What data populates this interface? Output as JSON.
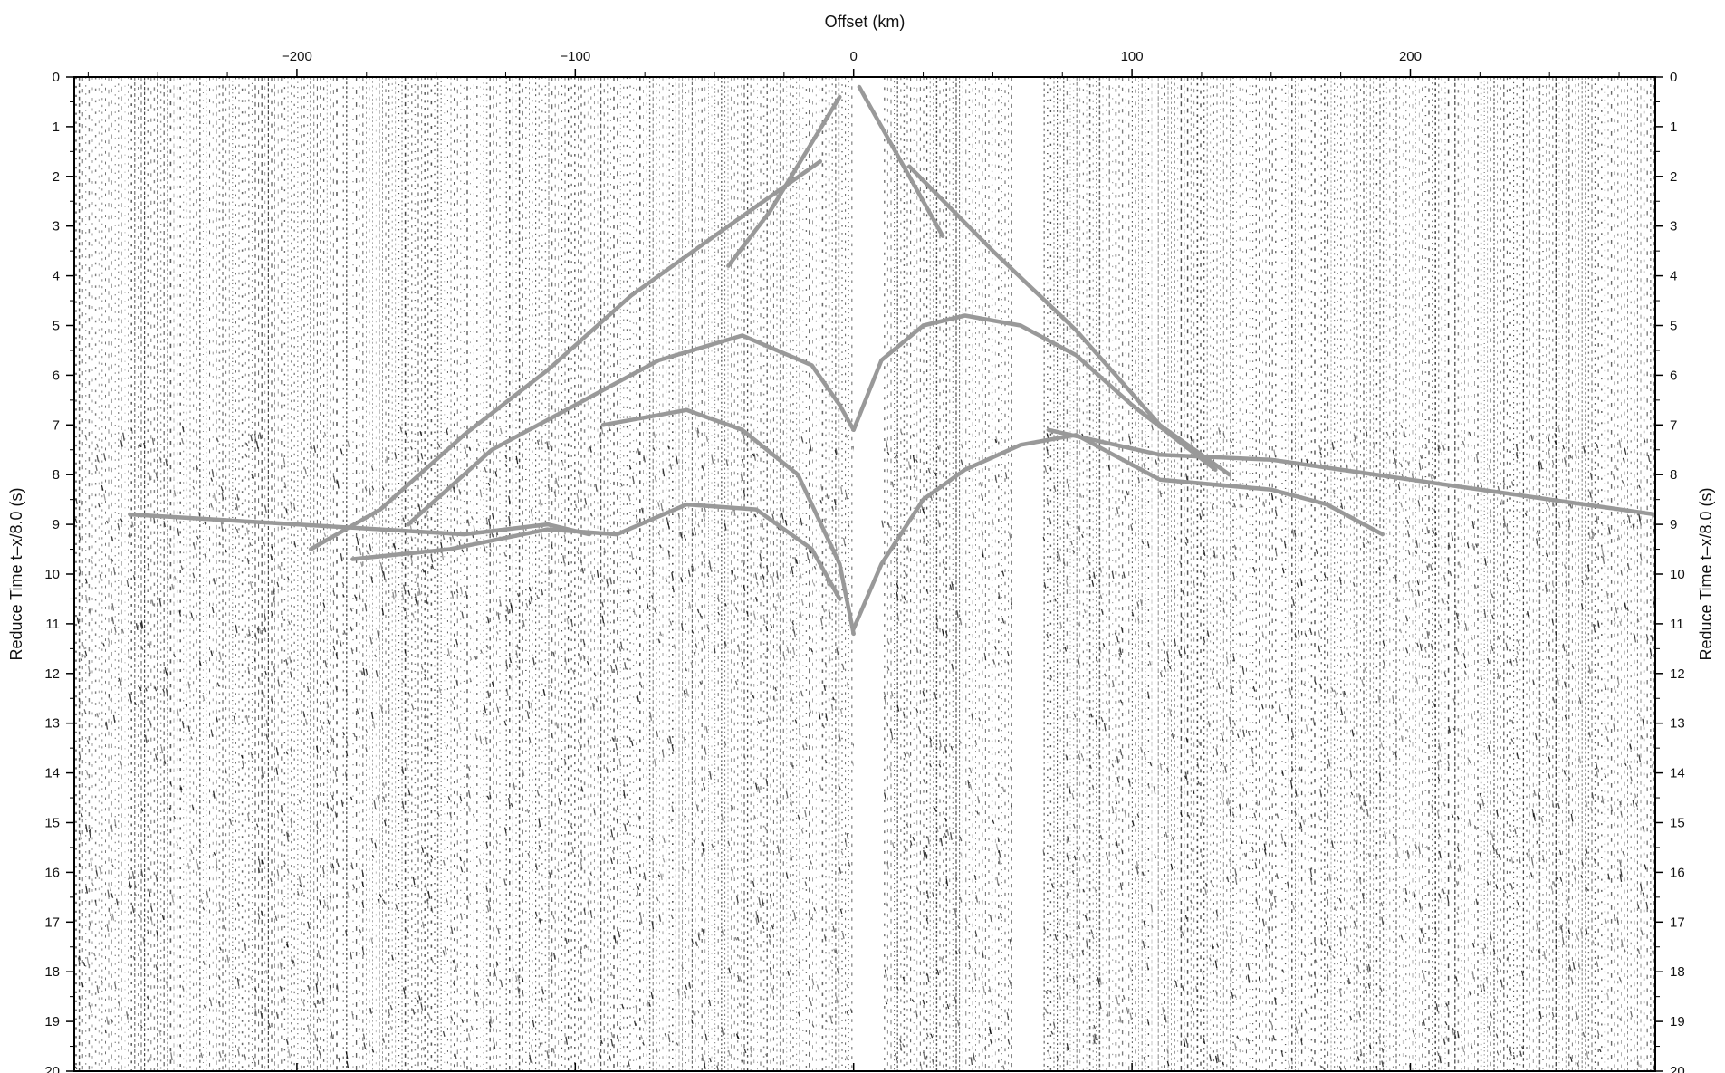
{
  "chart_data": {
    "type": "line",
    "title": "",
    "xlabel": "Offset (km)",
    "ylabel": "Reduce Time t–x/8.0 (s)",
    "ylabel_right": "Reduce Time t–x/8.0 (s)",
    "xlim": [
      -280,
      288
    ],
    "ylim": [
      0,
      20
    ],
    "y_inverted": true,
    "x_axis_position": "top",
    "x_ticks": [
      -200,
      -100,
      0,
      100,
      200
    ],
    "x_tick_labels": [
      "−200",
      "−100",
      "0",
      "100",
      "200"
    ],
    "y_ticks": [
      0,
      1,
      2,
      3,
      4,
      5,
      6,
      7,
      8,
      9,
      10,
      11,
      12,
      13,
      14,
      15,
      16,
      17,
      18,
      19,
      20
    ],
    "y_tick_labels": [
      "0",
      "1",
      "2",
      "3",
      "4",
      "5",
      "6",
      "7",
      "8",
      "9",
      "10",
      "11",
      "12",
      "13",
      "14",
      "15",
      "16",
      "17",
      "18",
      "19",
      "20"
    ],
    "grid": false,
    "background": "seismic record section (variable-wiggle traces)",
    "trace_gaps_km": [
      [
        0,
        10
      ],
      [
        57,
        68
      ]
    ],
    "curve_color": "#999999",
    "series": [
      {
        "x": [
          -5,
          -30,
          -45
        ],
        "y": [
          0.4,
          2.7,
          3.8
        ]
      },
      {
        "x": [
          2,
          20,
          32
        ],
        "y": [
          0.2,
          2.0,
          3.2
        ]
      },
      {
        "x": [
          -12,
          -45,
          -80,
          -110,
          -140,
          -170,
          -195
        ],
        "y": [
          1.7,
          3.0,
          4.4,
          5.9,
          7.2,
          8.7,
          9.5
        ]
      },
      {
        "x": [
          20,
          50,
          80,
          110,
          135
        ],
        "y": [
          1.8,
          3.5,
          5.1,
          7.0,
          8.0
        ]
      },
      {
        "x": [
          -160,
          -130,
          -100,
          -70,
          -40,
          -15,
          -5,
          0
        ],
        "y": [
          9.0,
          7.5,
          6.6,
          5.7,
          5.2,
          5.8,
          6.6,
          7.1
        ]
      },
      {
        "x": [
          0,
          10,
          25,
          40,
          60,
          80,
          100,
          130
        ],
        "y": [
          7.1,
          5.7,
          5.0,
          4.8,
          5.0,
          5.6,
          6.6,
          7.9
        ]
      },
      {
        "x": [
          -90,
          -60,
          -40,
          -20,
          -5,
          0
        ],
        "y": [
          7.0,
          6.7,
          7.1,
          8.0,
          9.8,
          11.2
        ]
      },
      {
        "x": [
          -180,
          -145,
          -110,
          -85,
          -60,
          -35,
          -15,
          -5
        ],
        "y": [
          9.7,
          9.5,
          9.1,
          9.2,
          8.6,
          8.7,
          9.5,
          10.5
        ]
      },
      {
        "x": [
          0,
          10,
          25,
          40,
          60,
          80,
          110,
          150,
          170,
          190
        ],
        "y": [
          11.1,
          9.8,
          8.5,
          7.9,
          7.4,
          7.2,
          8.1,
          8.3,
          8.6,
          9.2
        ]
      },
      {
        "x": [
          -260,
          -200,
          -170,
          -140,
          -110,
          -95
        ],
        "y": [
          8.8,
          9.0,
          9.1,
          9.2,
          9.0,
          9.2
        ]
      },
      {
        "x": [
          70,
          110,
          150,
          200,
          250,
          288
        ],
        "y": [
          7.1,
          7.6,
          7.7,
          8.1,
          8.5,
          8.8
        ]
      }
    ]
  }
}
